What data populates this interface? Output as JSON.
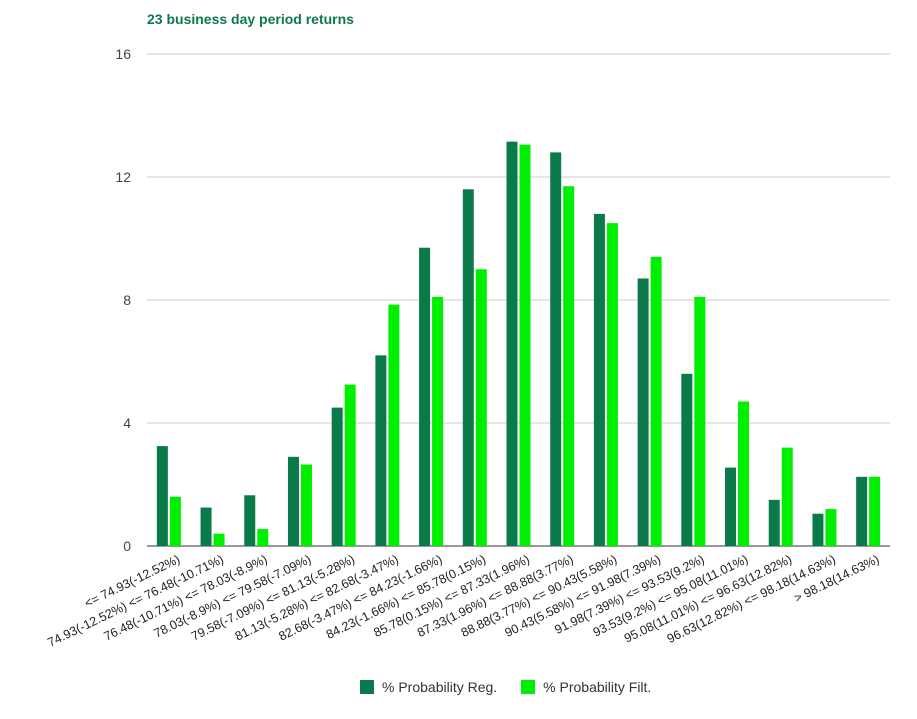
{
  "chart_data": {
    "type": "bar",
    "title": "23 business day period returns",
    "xlabel": "",
    "ylabel": "",
    "ylim": [
      0,
      16
    ],
    "yticks": [
      0,
      4,
      8,
      12,
      16
    ],
    "grid": true,
    "legend_position": "bottom",
    "categories": [
      "<= 74.93(-12.52%)",
      "74.93(-12.52%) <= 76.48(-10.71%)",
      "76.48(-10.71%) <= 78.03(-8.9%)",
      "78.03(-8.9%) <= 79.58(-7.09%)",
      "79.58(-7.09%) <= 81.13(-5.28%)",
      "81.13(-5.28%) <= 82.68(-3.47%)",
      "82.68(-3.47%) <= 84.23(-1.66%)",
      "84.23(-1.66%) <= 85.78(0.15%)",
      "85.78(0.15%) <= 87.33(1.96%)",
      "87.33(1.96%) <= 88.88(3.77%)",
      "88.88(3.77%) <= 90.43(5.58%)",
      "90.43(5.58%) <= 91.98(7.39%)",
      "91.98(7.39%) <= 93.53(9.2%)",
      "93.53(9.2%) <= 95.08(11.01%)",
      "95.08(11.01%) <= 96.63(12.82%)",
      "96.63(12.82%) <= 98.18(14.63%)",
      "> 98.18(14.63%)"
    ],
    "series": [
      {
        "name": "% Probability Reg.",
        "color": "#0b7a4a",
        "values": [
          3.25,
          1.25,
          1.65,
          2.9,
          4.5,
          6.2,
          9.7,
          11.6,
          13.15,
          12.8,
          10.8,
          8.7,
          5.6,
          2.55,
          1.5,
          1.05,
          2.25
        ]
      },
      {
        "name": "% Probability Filt.",
        "color": "#00ee00",
        "values": [
          1.6,
          0.4,
          0.55,
          2.65,
          5.25,
          7.85,
          8.1,
          9.0,
          13.05,
          11.7,
          10.5,
          9.4,
          8.1,
          4.7,
          3.2,
          1.2,
          2.25
        ]
      }
    ]
  }
}
